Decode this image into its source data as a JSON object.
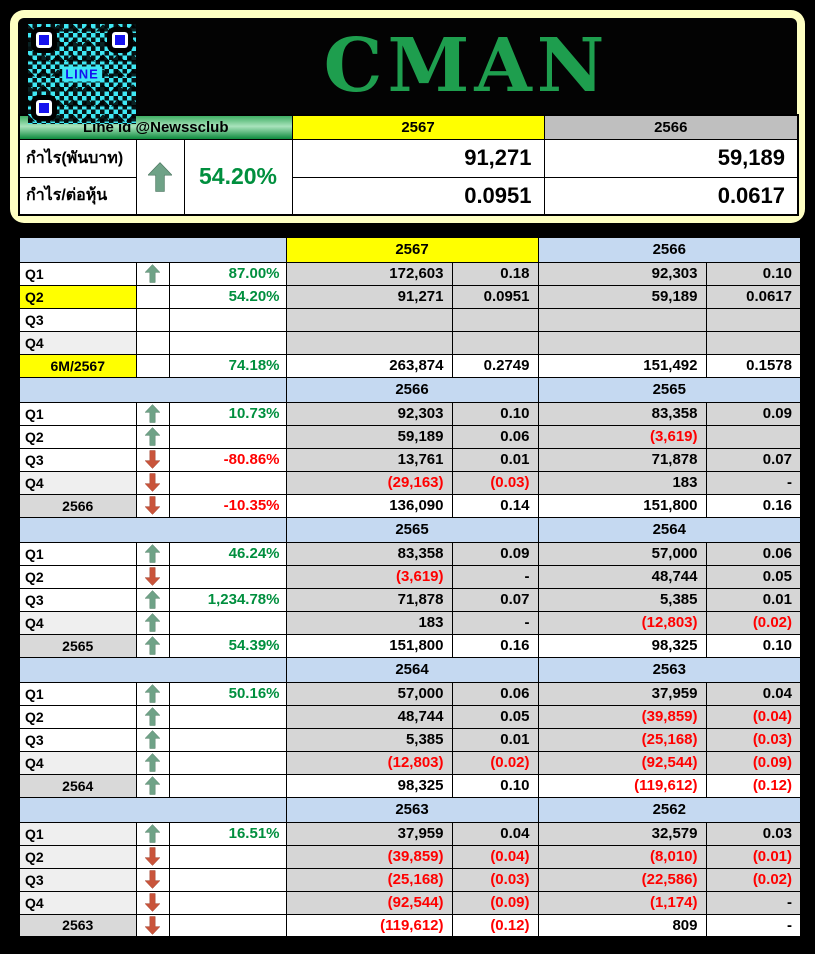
{
  "palette": {
    "title_green": "#1E9E4E",
    "qr_cyan": "#3FE8F4",
    "qr_blue": "#1612EE",
    "highlight_yellow": "#FFFF00",
    "header_light_blue": "#C5D9F1",
    "data_cell_gray": "#D6D6D6",
    "positive_green": "#008F3E",
    "negative_red": "#FF0000",
    "arrow_up_color": "#6FA287",
    "arrow_down_color": "#C9543B"
  },
  "qr": {
    "label": "LINE"
  },
  "summary": {
    "line_id": "Line id @Newssclub",
    "years": [
      "2567",
      "2566"
    ],
    "arrow": "up",
    "percent": "54.20%",
    "rows": [
      {
        "label": "กำไร(พันบาท)",
        "values": [
          "91,271",
          "59,189"
        ]
      },
      {
        "label": "กำไร/ต่อหุ้น",
        "values": [
          "0.0951",
          "0.0617"
        ]
      }
    ]
  },
  "chart_data": {
    "type": "table",
    "title": "CMAN",
    "columns_per_year": [
      "กำไร(พันบาท)",
      "กำไร/ต่อหุ้น"
    ],
    "blocks": [
      {
        "year_left": "2567",
        "left_highlight": true,
        "year_right": "2566",
        "rows": [
          {
            "label": "Q1",
            "label_bg": "plain",
            "arrow": "up",
            "pct": "87.00%",
            "pct_tone": "pos",
            "total": false,
            "center": false,
            "cells": [
              [
                "172,603",
                0
              ],
              [
                "0.18",
                0
              ],
              [
                "92,303",
                0
              ],
              [
                "0.10",
                0
              ]
            ]
          },
          {
            "label": "Q2",
            "label_bg": "yellow",
            "arrow": "",
            "pct": "54.20%",
            "pct_tone": "pos",
            "total": false,
            "center": false,
            "cells": [
              [
                "91,271",
                0
              ],
              [
                "0.0951",
                0
              ],
              [
                "59,189",
                0
              ],
              [
                "0.0617",
                0
              ]
            ]
          },
          {
            "label": "Q3",
            "label_bg": "plain",
            "arrow": "",
            "pct": "",
            "pct_tone": "pos",
            "total": false,
            "center": false,
            "cells": [
              [
                "",
                0
              ],
              [
                "",
                0
              ],
              [
                "",
                0
              ],
              [
                "",
                0
              ]
            ]
          },
          {
            "label": "Q4",
            "label_bg": "soft",
            "arrow": "",
            "pct": "",
            "pct_tone": "pos",
            "total": false,
            "center": false,
            "cells": [
              [
                "",
                0
              ],
              [
                "",
                0
              ],
              [
                "",
                0
              ],
              [
                "",
                0
              ]
            ]
          },
          {
            "label": "6M/2567",
            "label_bg": "yellow",
            "arrow": "",
            "pct": "74.18%",
            "pct_tone": "pos",
            "total": true,
            "center": true,
            "cells": [
              [
                "263,874",
                0
              ],
              [
                "0.2749",
                0
              ],
              [
                "151,492",
                0
              ],
              [
                "0.1578",
                0
              ]
            ]
          }
        ]
      },
      {
        "year_left": "2566",
        "left_highlight": false,
        "year_right": "2565",
        "rows": [
          {
            "label": "Q1",
            "label_bg": "plain",
            "arrow": "up",
            "pct": "10.73%",
            "pct_tone": "pos",
            "total": false,
            "center": false,
            "cells": [
              [
                "92,303",
                0
              ],
              [
                "0.10",
                0
              ],
              [
                "83,358",
                0
              ],
              [
                "0.09",
                0
              ]
            ]
          },
          {
            "label": "Q2",
            "label_bg": "plain",
            "arrow": "up",
            "pct": "",
            "pct_tone": "pos",
            "total": false,
            "center": false,
            "cells": [
              [
                "59,189",
                0
              ],
              [
                "0.06",
                0
              ],
              [
                "(3,619)",
                1
              ],
              [
                "",
                0
              ]
            ]
          },
          {
            "label": "Q3",
            "label_bg": "plain",
            "arrow": "down",
            "pct": "-80.86%",
            "pct_tone": "neg",
            "total": false,
            "center": false,
            "cells": [
              [
                "13,761",
                0
              ],
              [
                "0.01",
                0
              ],
              [
                "71,878",
                0
              ],
              [
                "0.07",
                0
              ]
            ]
          },
          {
            "label": "Q4",
            "label_bg": "soft",
            "arrow": "down",
            "pct": "",
            "pct_tone": "neg",
            "total": false,
            "center": false,
            "cells": [
              [
                "(29,163)",
                1
              ],
              [
                "(0.03)",
                1
              ],
              [
                "183",
                0
              ],
              [
                "-",
                0
              ]
            ]
          },
          {
            "label": "2566",
            "label_bg": "gray",
            "arrow": "down",
            "pct": "-10.35%",
            "pct_tone": "neg",
            "total": true,
            "center": true,
            "cells": [
              [
                "136,090",
                0
              ],
              [
                "0.14",
                0
              ],
              [
                "151,800",
                0
              ],
              [
                "0.16",
                0
              ]
            ]
          }
        ]
      },
      {
        "year_left": "2565",
        "left_highlight": false,
        "year_right": "2564",
        "rows": [
          {
            "label": "Q1",
            "label_bg": "plain",
            "arrow": "up",
            "pct": "46.24%",
            "pct_tone": "pos",
            "total": false,
            "center": false,
            "cells": [
              [
                "83,358",
                0
              ],
              [
                "0.09",
                0
              ],
              [
                "57,000",
                0
              ],
              [
                "0.06",
                0
              ]
            ]
          },
          {
            "label": "Q2",
            "label_bg": "plain",
            "arrow": "down",
            "pct": "",
            "pct_tone": "neg",
            "total": false,
            "center": false,
            "cells": [
              [
                "(3,619)",
                1
              ],
              [
                "-",
                0
              ],
              [
                "48,744",
                0
              ],
              [
                "0.05",
                0
              ]
            ]
          },
          {
            "label": "Q3",
            "label_bg": "plain",
            "arrow": "up",
            "pct": "1,234.78%",
            "pct_tone": "pos",
            "total": false,
            "center": false,
            "cells": [
              [
                "71,878",
                0
              ],
              [
                "0.07",
                0
              ],
              [
                "5,385",
                0
              ],
              [
                "0.01",
                0
              ]
            ]
          },
          {
            "label": "Q4",
            "label_bg": "soft",
            "arrow": "up",
            "pct": "",
            "pct_tone": "pos",
            "total": false,
            "center": false,
            "cells": [
              [
                "183",
                0
              ],
              [
                "-",
                0
              ],
              [
                "(12,803)",
                1
              ],
              [
                "(0.02)",
                1
              ]
            ]
          },
          {
            "label": "2565",
            "label_bg": "gray",
            "arrow": "up",
            "pct": "54.39%",
            "pct_tone": "pos",
            "total": true,
            "center": true,
            "cells": [
              [
                "151,800",
                0
              ],
              [
                "0.16",
                0
              ],
              [
                "98,325",
                0
              ],
              [
                "0.10",
                0
              ]
            ]
          }
        ]
      },
      {
        "year_left": "2564",
        "left_highlight": false,
        "year_right": "2563",
        "rows": [
          {
            "label": "Q1",
            "label_bg": "plain",
            "arrow": "up",
            "pct": "50.16%",
            "pct_tone": "pos",
            "total": false,
            "center": false,
            "cells": [
              [
                "57,000",
                0
              ],
              [
                "0.06",
                0
              ],
              [
                "37,959",
                0
              ],
              [
                "0.04",
                0
              ]
            ]
          },
          {
            "label": "Q2",
            "label_bg": "plain",
            "arrow": "up",
            "pct": "",
            "pct_tone": "pos",
            "total": false,
            "center": false,
            "cells": [
              [
                "48,744",
                0
              ],
              [
                "0.05",
                0
              ],
              [
                "(39,859)",
                1
              ],
              [
                "(0.04)",
                1
              ]
            ]
          },
          {
            "label": "Q3",
            "label_bg": "plain",
            "arrow": "up",
            "pct": "",
            "pct_tone": "pos",
            "total": false,
            "center": false,
            "cells": [
              [
                "5,385",
                0
              ],
              [
                "0.01",
                0
              ],
              [
                "(25,168)",
                1
              ],
              [
                "(0.03)",
                1
              ]
            ]
          },
          {
            "label": "Q4",
            "label_bg": "soft",
            "arrow": "up",
            "pct": "",
            "pct_tone": "pos",
            "total": false,
            "center": false,
            "cells": [
              [
                "(12,803)",
                1
              ],
              [
                "(0.02)",
                1
              ],
              [
                "(92,544)",
                1
              ],
              [
                "(0.09)",
                1
              ]
            ]
          },
          {
            "label": "2564",
            "label_bg": "gray",
            "arrow": "up",
            "pct": "",
            "pct_tone": "pos",
            "total": true,
            "center": true,
            "cells": [
              [
                "98,325",
                0
              ],
              [
                "0.10",
                0
              ],
              [
                "(119,612)",
                1
              ],
              [
                "(0.12)",
                1
              ]
            ]
          }
        ]
      },
      {
        "year_left": "2563",
        "left_highlight": false,
        "year_right": "2562",
        "rows": [
          {
            "label": "Q1",
            "label_bg": "soft",
            "arrow": "up",
            "pct": "16.51%",
            "pct_tone": "pos",
            "total": false,
            "center": false,
            "cells": [
              [
                "37,959",
                0
              ],
              [
                "0.04",
                0
              ],
              [
                "32,579",
                0
              ],
              [
                "0.03",
                0
              ]
            ]
          },
          {
            "label": "Q2",
            "label_bg": "soft",
            "arrow": "down",
            "pct": "",
            "pct_tone": "neg",
            "total": false,
            "center": false,
            "cells": [
              [
                "(39,859)",
                1
              ],
              [
                "(0.04)",
                1
              ],
              [
                "(8,010)",
                1
              ],
              [
                "(0.01)",
                1
              ]
            ]
          },
          {
            "label": "Q3",
            "label_bg": "soft",
            "arrow": "down",
            "pct": "",
            "pct_tone": "neg",
            "total": false,
            "center": false,
            "cells": [
              [
                "(25,168)",
                1
              ],
              [
                "(0.03)",
                1
              ],
              [
                "(22,586)",
                1
              ],
              [
                "(0.02)",
                1
              ]
            ]
          },
          {
            "label": "Q4",
            "label_bg": "soft",
            "arrow": "down",
            "pct": "",
            "pct_tone": "neg",
            "total": false,
            "center": false,
            "cells": [
              [
                "(92,544)",
                1
              ],
              [
                "(0.09)",
                1
              ],
              [
                "(1,174)",
                1
              ],
              [
                "-",
                0
              ]
            ]
          },
          {
            "label": "2563",
            "label_bg": "gray",
            "arrow": "down",
            "pct": "",
            "pct_tone": "neg",
            "total": true,
            "center": true,
            "cells": [
              [
                "(119,612)",
                1
              ],
              [
                "(0.12)",
                1
              ],
              [
                "809",
                0
              ],
              [
                "-",
                0
              ]
            ]
          }
        ]
      }
    ]
  }
}
